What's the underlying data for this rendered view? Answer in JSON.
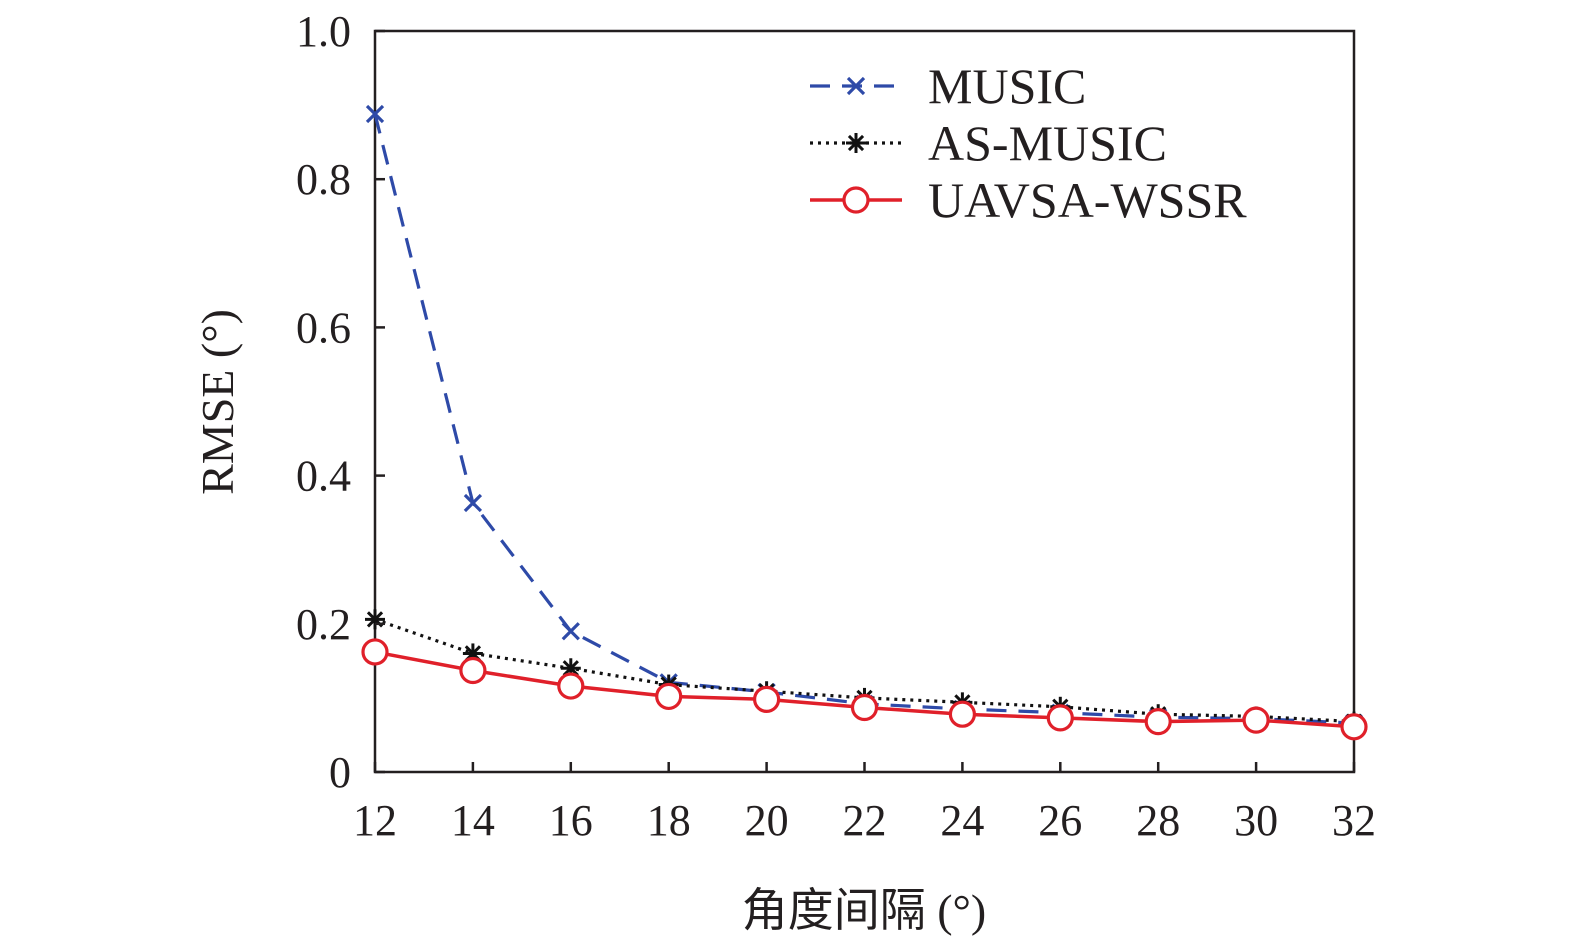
{
  "chart_data": {
    "type": "line",
    "title": "",
    "xlabel": "角度间隔 (°)",
    "ylabel": "RMSE (°)",
    "x": [
      12,
      14,
      16,
      18,
      20,
      22,
      24,
      26,
      28,
      30,
      32
    ],
    "xlim": [
      12,
      32
    ],
    "ylim": [
      0,
      1.0
    ],
    "xticks": [
      "12",
      "14",
      "16",
      "18",
      "20",
      "22",
      "24",
      "26",
      "28",
      "30",
      "32"
    ],
    "yticks": [
      {
        "value": 0,
        "label": "0"
      },
      {
        "value": 0.2,
        "label": "0.2"
      },
      {
        "value": 0.4,
        "label": "0.4"
      },
      {
        "value": 0.6,
        "label": "0.6"
      },
      {
        "value": 0.8,
        "label": "0.8"
      },
      {
        "value": 1.0,
        "label": "1.0"
      }
    ],
    "grid": false,
    "legend_position": "top-right",
    "series": [
      {
        "name": "MUSIC",
        "color": "#2e4aa8",
        "line_style": "dashed",
        "marker": "x",
        "values": [
          0.888,
          0.363,
          0.19,
          0.121,
          0.108,
          0.092,
          0.085,
          0.08,
          0.074,
          0.072,
          0.066
        ]
      },
      {
        "name": "AS-MUSIC",
        "color": "#111111",
        "line_style": "dotted",
        "marker": "asterisk",
        "values": [
          0.206,
          0.16,
          0.14,
          0.118,
          0.109,
          0.1,
          0.094,
          0.088,
          0.078,
          0.075,
          0.068
        ]
      },
      {
        "name": "UAVSA-WSSR",
        "color": "#e0202a",
        "line_style": "solid",
        "marker": "circle",
        "values": [
          0.162,
          0.137,
          0.116,
          0.102,
          0.098,
          0.087,
          0.078,
          0.073,
          0.068,
          0.07,
          0.061
        ]
      }
    ]
  }
}
